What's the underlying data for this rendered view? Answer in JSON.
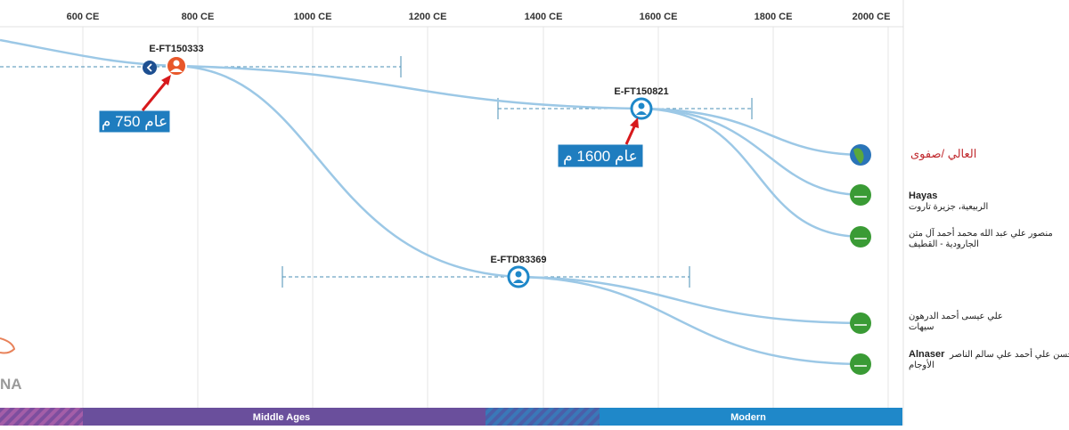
{
  "axis": {
    "labels": [
      "600 CE",
      "800 CE",
      "1000 CE",
      "1200 CE",
      "1400 CE",
      "1600 CE",
      "1800 CE",
      "2000 CE"
    ]
  },
  "nodes": [
    {
      "label": "E-FT150333"
    },
    {
      "label": "E-FT150821"
    },
    {
      "label": "E-FTD83369"
    }
  ],
  "callouts": [
    {
      "text": "عام 750 م"
    },
    {
      "text": "عام 1600 م"
    }
  ],
  "leaves": [
    {
      "name": "العالي /صفوى"
    },
    {
      "name": "Hayas",
      "lines": [
        "الربيعية، جزيرة تاروت"
      ]
    },
    {
      "lines": [
        "منصور علي عبد الله محمد أحمد آل متن",
        "الجارودية - القطيف"
      ]
    },
    {
      "lines": [
        "علي عيسى أحمد الدرهون",
        "سيهات"
      ]
    },
    {
      "name": "Alnaser",
      "lines": [
        "علي حسن علي أحمد علي سالم الناصر",
        "الأوجام"
      ]
    }
  ],
  "eras": [
    "Middle Ages",
    "Modern"
  ],
  "logo": "NA"
}
